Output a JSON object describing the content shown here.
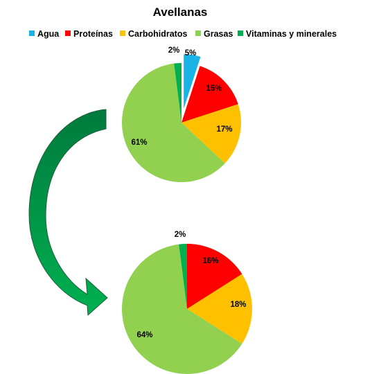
{
  "chart_data": {
    "type": "pie",
    "title": "Avellanas",
    "legend_position": "top",
    "legend": [
      {
        "name": "Agua",
        "color": "#1ab3e6"
      },
      {
        "name": "Proteínas",
        "color": "#ff0000"
      },
      {
        "name": "Carbohidratos",
        "color": "#ffc000"
      },
      {
        "name": "Grasas",
        "color": "#92d050"
      },
      {
        "name": "Vitaminas y minerales",
        "color": "#00b050"
      }
    ],
    "pies": [
      {
        "categories": [
          "Agua",
          "Proteínas",
          "Carbohidratos",
          "Grasas",
          "Vitaminas y minerales"
        ],
        "values": [
          5,
          15,
          17,
          61,
          2
        ],
        "labels": [
          "5%",
          "15%",
          "17%",
          "61%",
          "2%"
        ],
        "exploded": "Agua"
      },
      {
        "categories": [
          "Proteínas",
          "Carbohidratos",
          "Grasas",
          "Vitaminas y minerales"
        ],
        "values": [
          16,
          18,
          64,
          2
        ],
        "labels": [
          "16%",
          "18%",
          "64%",
          "2%"
        ]
      }
    ],
    "arrow": {
      "icon": "curved-arrow-icon",
      "color_start": "#007a3d",
      "color_end": "#00b050"
    }
  }
}
